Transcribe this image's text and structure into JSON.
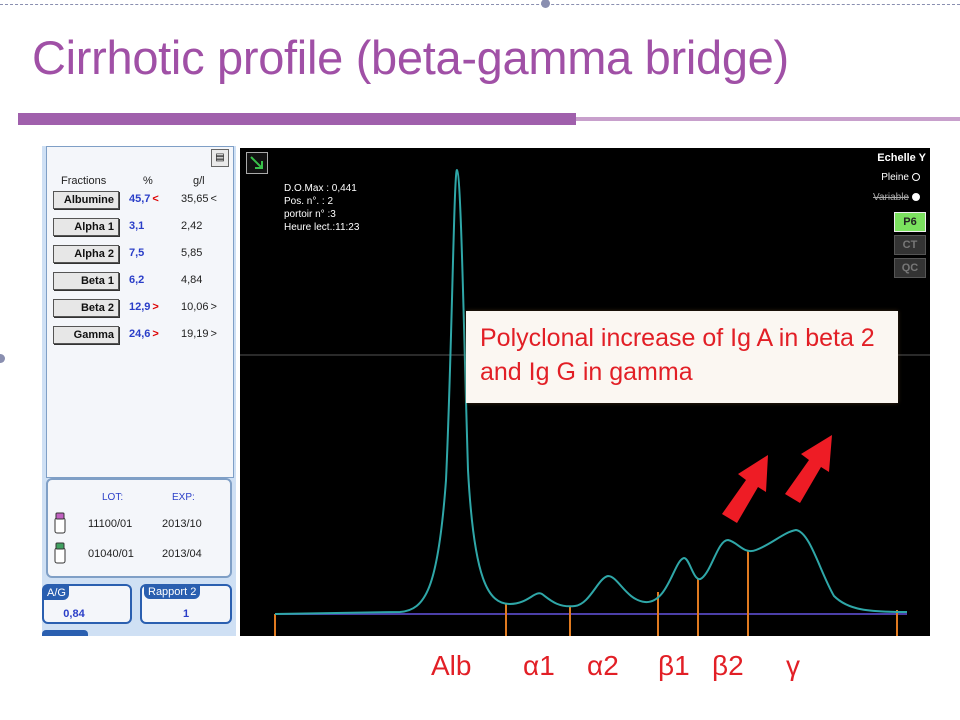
{
  "title": "Cirrhotic profile (beta-gamma bridge)",
  "colors": {
    "title": "#a050a6",
    "annotation": "#e21f26",
    "curve": "#2fa7a8",
    "baseline": "#4b3fa8",
    "marker": "#e07a20"
  },
  "panel": {
    "headers": {
      "fraction": "Fractions",
      "percent": "%",
      "gl": "g/l"
    },
    "rows": [
      {
        "name": "Albumine",
        "pct": "45,7",
        "pct_flag": "<",
        "gl": "35,65",
        "gl_flag": "<"
      },
      {
        "name": "Alpha 1",
        "pct": "3,1",
        "pct_flag": "",
        "gl": "2,42",
        "gl_flag": ""
      },
      {
        "name": "Alpha 2",
        "pct": "7,5",
        "pct_flag": "",
        "gl": "5,85",
        "gl_flag": ""
      },
      {
        "name": "Beta 1",
        "pct": "6,2",
        "pct_flag": "",
        "gl": "4,84",
        "gl_flag": ""
      },
      {
        "name": "Beta 2",
        "pct": "12,9",
        "pct_flag": ">",
        "gl": "10,06",
        "gl_flag": ">"
      },
      {
        "name": "Gamma",
        "pct": "24,6",
        "pct_flag": ">",
        "gl": "19,19",
        "gl_flag": ">"
      }
    ],
    "lot_header": "LOT:",
    "exp_header": "EXP:",
    "lots": [
      {
        "lot": "11100/01",
        "exp": "2013/10"
      },
      {
        "lot": "01040/01",
        "exp": "2013/04"
      }
    ],
    "ag_label": "A/G",
    "ag_value": "0,84",
    "ratio2_label": "Rapport 2",
    "ratio2_value": "1"
  },
  "graph": {
    "info": [
      "D.O.Max : 0,441",
      "Pos. n°.   : 2",
      "portoir n° :3",
      "Heure lect.:11:23"
    ],
    "scale_title": "Echelle Y",
    "scale_full": "Pleine",
    "scale_variable": "Variable",
    "buttons": [
      "P6",
      "CT",
      "QC"
    ],
    "annotation": "Polyclonal increase of Ig A in beta 2 and Ig G in gamma"
  },
  "fraction_labels": [
    "Alb",
    "α1",
    "α2",
    "β1",
    "β2",
    "γ"
  ]
}
